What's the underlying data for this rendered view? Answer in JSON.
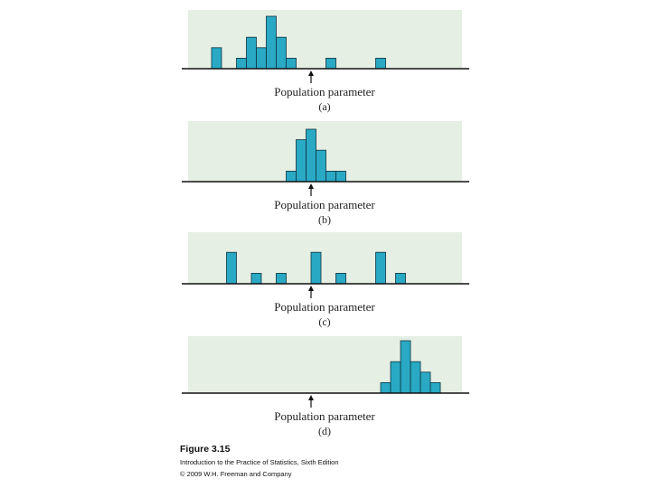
{
  "colors": {
    "panel_background": "#e6efe3",
    "bar_fill": "#29a9c4",
    "bar_stroke": "#0d3340",
    "axis_line": "#111111"
  },
  "chart_data": [
    {
      "type": "bar",
      "panel_label": "(a)",
      "axis_label": "Population parameter",
      "marker": "arrow pointing to the population parameter on the horizontal axis",
      "bars": [
        {
          "position": -9.5,
          "count": 2
        },
        {
          "position": -7,
          "count": 1
        },
        {
          "position": -6,
          "count": 3
        },
        {
          "position": -5,
          "count": 2
        },
        {
          "position": -4,
          "count": 5
        },
        {
          "position": -3,
          "count": 3
        },
        {
          "position": -2,
          "count": 1
        },
        {
          "position": 2,
          "count": 1
        },
        {
          "position": 7,
          "count": 1
        }
      ],
      "xlim": [
        -13,
        15
      ],
      "ylim": [
        0,
        5
      ]
    },
    {
      "type": "bar",
      "panel_label": "(b)",
      "axis_label": "Population parameter",
      "marker": "arrow pointing to the population parameter on the horizontal axis",
      "bars": [
        {
          "position": -2,
          "count": 1
        },
        {
          "position": -1,
          "count": 4
        },
        {
          "position": 0,
          "count": 5
        },
        {
          "position": 1,
          "count": 3
        },
        {
          "position": 2,
          "count": 1
        },
        {
          "position": 3,
          "count": 1
        }
      ],
      "xlim": [
        -13,
        15
      ],
      "ylim": [
        0,
        5
      ]
    },
    {
      "type": "bar",
      "panel_label": "(c)",
      "axis_label": "Population parameter",
      "marker": "arrow pointing to the population parameter on the horizontal axis",
      "bars": [
        {
          "position": -8,
          "count": 3
        },
        {
          "position": -5.5,
          "count": 1
        },
        {
          "position": -3,
          "count": 1
        },
        {
          "position": 0.5,
          "count": 3
        },
        {
          "position": 3,
          "count": 1
        },
        {
          "position": 7,
          "count": 3
        },
        {
          "position": 9,
          "count": 1
        }
      ],
      "xlim": [
        -13,
        15
      ],
      "ylim": [
        0,
        5
      ]
    },
    {
      "type": "bar",
      "panel_label": "(d)",
      "axis_label": "Population parameter",
      "marker": "arrow pointing to the population parameter on the horizontal axis",
      "bars": [
        {
          "position": 7.5,
          "count": 1
        },
        {
          "position": 8.5,
          "count": 3
        },
        {
          "position": 9.5,
          "count": 5
        },
        {
          "position": 10.5,
          "count": 3
        },
        {
          "position": 11.5,
          "count": 2
        },
        {
          "position": 12.5,
          "count": 1
        }
      ],
      "xlim": [
        -13,
        15
      ],
      "ylim": [
        0,
        5
      ]
    }
  ],
  "caption": {
    "figure": "Figure 3.15",
    "book": "Introduction to the Practice of Statistics, Sixth Edition",
    "copyright": "© 2009 W.H. Freeman and Company"
  }
}
